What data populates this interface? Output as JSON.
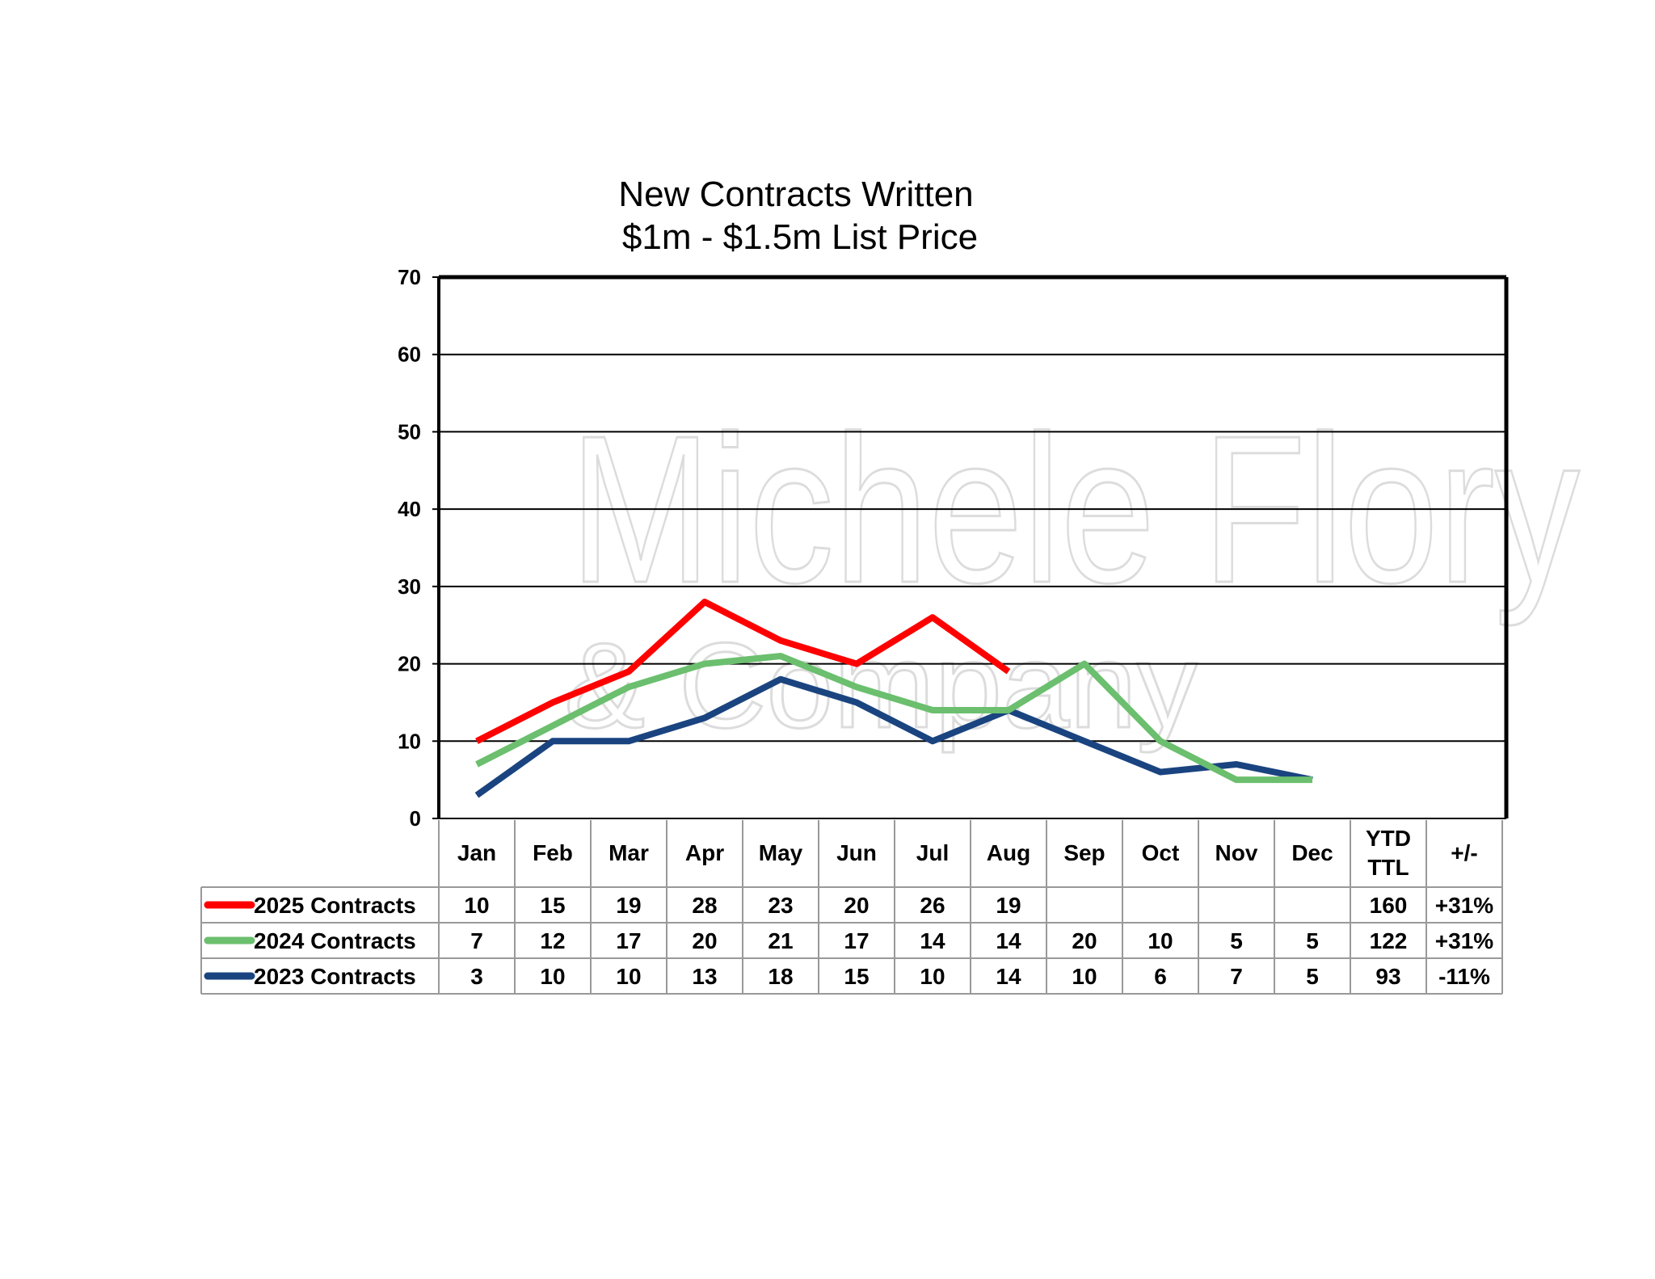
{
  "watermark": {
    "line1": "Michele Flory",
    "line2": "& Company"
  },
  "chart_data": {
    "type": "line",
    "title": [
      "New Contracts Written",
      "$1m - $1.5m List Price"
    ],
    "xlabel": "",
    "ylabel": "",
    "categories": [
      "Jan",
      "Feb",
      "Mar",
      "Apr",
      "May",
      "Jun",
      "Jul",
      "Aug",
      "Sep",
      "Oct",
      "Nov",
      "Dec"
    ],
    "ylim": [
      0,
      70
    ],
    "yticks": [
      0,
      10,
      20,
      30,
      40,
      50,
      60,
      70
    ],
    "grid": true,
    "legend": "table-left",
    "series": [
      {
        "name": "2025 Contracts",
        "color": "#ff0000",
        "values": [
          10,
          15,
          19,
          28,
          23,
          20,
          26,
          19,
          null,
          null,
          null,
          null
        ],
        "ytd_ttl": "160",
        "change": "+31%"
      },
      {
        "name": "2024 Contracts",
        "color": "#6bbf6e",
        "values": [
          7,
          12,
          17,
          20,
          21,
          17,
          14,
          14,
          20,
          10,
          5,
          5
        ],
        "ytd_ttl": "122",
        "change": "+31%"
      },
      {
        "name": "2023 Contracts",
        "color": "#1a4480",
        "values": [
          3,
          10,
          10,
          13,
          18,
          15,
          10,
          14,
          10,
          6,
          7,
          5
        ],
        "ytd_ttl": "93",
        "change": "-11%"
      }
    ],
    "table_headers": {
      "ytd_line1": "YTD",
      "ytd_line2": "TTL",
      "change": "+/-"
    }
  }
}
